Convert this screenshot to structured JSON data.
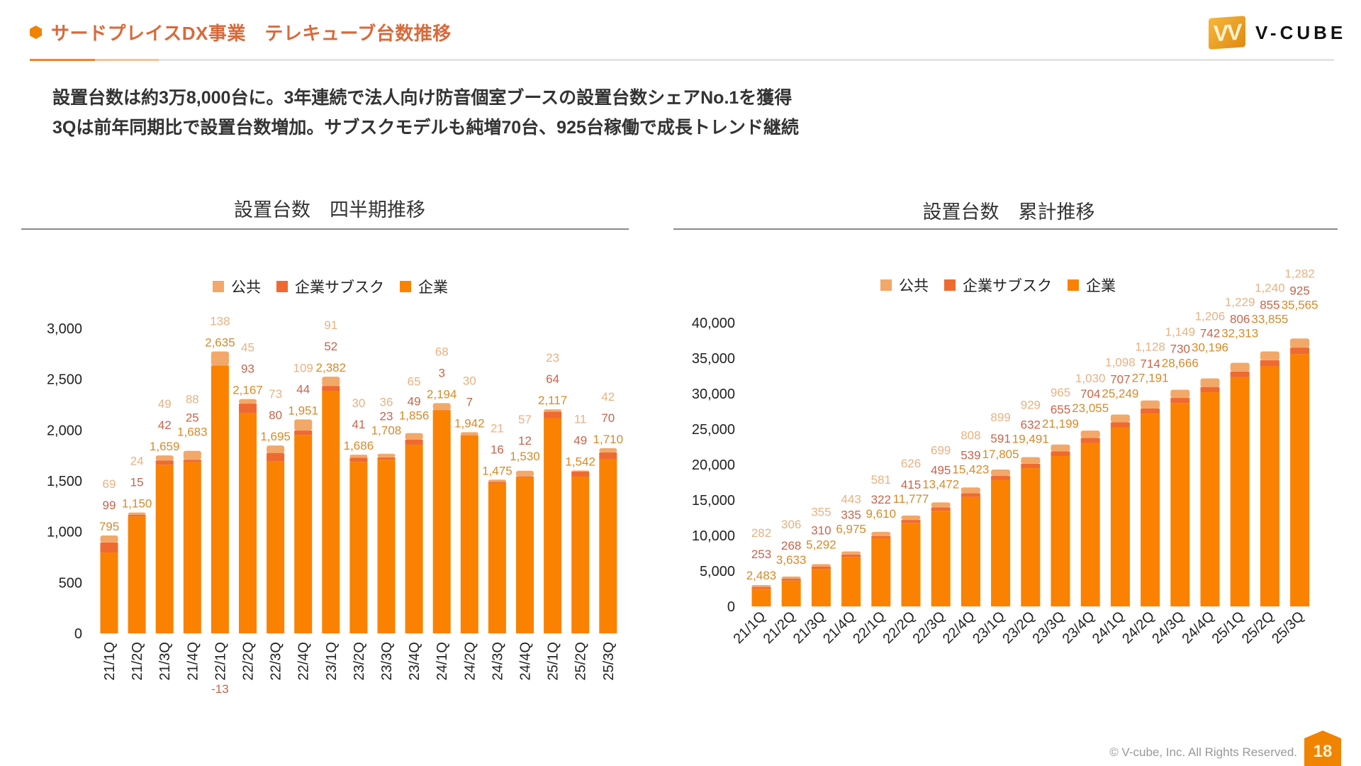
{
  "header": {
    "title": "サードプレイスDX事業　テレキューブ台数推移",
    "logo_text": "V-CUBE",
    "logo_mark": "VV"
  },
  "messages": [
    "設置台数は約3万8,000台に。3年連続で法人向け防音個室ブースの設置台数シェアNo.1を獲得",
    "3Qは前年同期比で設置台数増加。サブスクモデルも純増70台、925台稼働で成長トレンド継続"
  ],
  "colors": {
    "accent": "#f08300",
    "title": "#d9693a",
    "enterprise": "#fa8200",
    "subscription": "#ef6a30",
    "public": "#f2a868",
    "enterprise_label": "#d68a2a",
    "subscription_label": "#c8644a",
    "public_label": "#e8b283"
  },
  "legend": [
    "公共",
    "企業サブスク",
    "企業"
  ],
  "chart_data": [
    {
      "type": "bar",
      "stacked": true,
      "title": "設置台数　四半期推移",
      "categories": [
        "21/1Q",
        "21/2Q",
        "21/3Q",
        "21/4Q",
        "22/1Q",
        "22/2Q",
        "22/3Q",
        "22/4Q",
        "23/1Q",
        "23/2Q",
        "23/3Q",
        "23/4Q",
        "24/1Q",
        "24/2Q",
        "24/3Q",
        "24/4Q",
        "25/1Q",
        "25/2Q",
        "25/3Q"
      ],
      "series": [
        {
          "name": "企業",
          "values": [
            795,
            1150,
            1659,
            1683,
            2635,
            2167,
            1695,
            1951,
            2382,
            1686,
            1708,
            1856,
            2194,
            1942,
            1475,
            1530,
            2117,
            1542,
            1710
          ]
        },
        {
          "name": "企業サブスク",
          "values": [
            99,
            15,
            42,
            25,
            -13,
            93,
            80,
            44,
            52,
            41,
            23,
            49,
            3,
            7,
            16,
            12,
            64,
            49,
            70
          ]
        },
        {
          "name": "公共",
          "values": [
            69,
            24,
            49,
            88,
            138,
            45,
            73,
            109,
            91,
            30,
            36,
            65,
            68,
            30,
            21,
            57,
            23,
            11,
            42
          ]
        }
      ],
      "yticks": [
        "0",
        "500",
        "1,000",
        "1,500",
        "2,000",
        "2,500",
        "3,000"
      ],
      "ylim": [
        0,
        3000
      ],
      "legend_position": "top",
      "grid": false
    },
    {
      "type": "bar",
      "stacked": true,
      "title": "設置台数　累計推移",
      "categories": [
        "21/1Q",
        "21/2Q",
        "21/3Q",
        "21/4Q",
        "22/1Q",
        "22/2Q",
        "22/3Q",
        "22/4Q",
        "23/1Q",
        "23/2Q",
        "23/3Q",
        "23/4Q",
        "24/1Q",
        "24/2Q",
        "24/3Q",
        "24/4Q",
        "25/1Q",
        "25/2Q",
        "25/3Q"
      ],
      "series": [
        {
          "name": "企業",
          "values": [
            2483,
            3633,
            5292,
            6975,
            9610,
            11777,
            13472,
            15423,
            17805,
            19491,
            21199,
            23055,
            25249,
            27191,
            28666,
            30196,
            32313,
            33855,
            35565
          ]
        },
        {
          "name": "企業サブスク",
          "values": [
            253,
            268,
            310,
            335,
            322,
            415,
            495,
            539,
            591,
            632,
            655,
            704,
            707,
            714,
            730,
            742,
            806,
            855,
            925
          ]
        },
        {
          "name": "公共",
          "values": [
            282,
            306,
            355,
            443,
            581,
            626,
            699,
            808,
            899,
            929,
            965,
            1030,
            1098,
            1128,
            1149,
            1206,
            1229,
            1240,
            1282
          ]
        }
      ],
      "yticks": [
        "0",
        "5,000",
        "10,000",
        "15,000",
        "20,000",
        "25,000",
        "30,000",
        "35,000",
        "40,000"
      ],
      "ylim": [
        0,
        40000
      ],
      "legend_position": "top",
      "grid": false
    }
  ],
  "footer": {
    "copyright": "© V-cube, Inc. All Rights Reserved.",
    "page": "18"
  }
}
